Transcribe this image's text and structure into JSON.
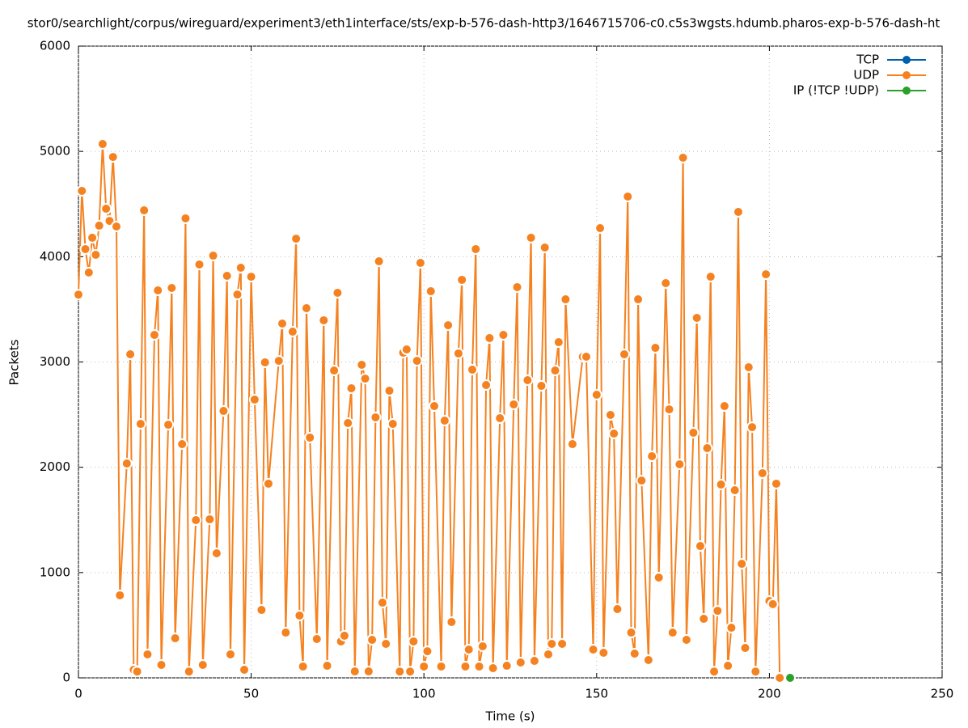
{
  "chart_data": {
    "type": "line",
    "title": "stor0/searchlight/corpus/wireguard/experiment3/eth1interface/sts/exp-b-576-dash-http3/1646715706-c0.c5s3wgsts.hdumb.pharos-exp-b-576-dash-ht",
    "x_label": "Time (s)",
    "y_label": "Packets",
    "xlim": [
      0,
      250
    ],
    "xticks": [
      0,
      50,
      100,
      150,
      200,
      250
    ],
    "ylim": [
      0,
      6000
    ],
    "yticks": [
      0,
      1000,
      2000,
      3000,
      4000,
      5000,
      6000
    ],
    "grid": true,
    "legend": "top-right",
    "series": [
      {
        "name": "TCP",
        "color": "#0060ad",
        "x": [],
        "values": []
      },
      {
        "name": "UDP",
        "color": "#f58220",
        "x": [
          0,
          1,
          2,
          3,
          4,
          5,
          6,
          7,
          8,
          9,
          10,
          11,
          12,
          14,
          15,
          16,
          17,
          18,
          19,
          20,
          22,
          23,
          24,
          26,
          27,
          28,
          30,
          31,
          32,
          34,
          35,
          36,
          38,
          39,
          40,
          42,
          43,
          44,
          46,
          47,
          48,
          50,
          51,
          53,
          54,
          55,
          58,
          59,
          60,
          62,
          63,
          64,
          65,
          66,
          67,
          69,
          71,
          72,
          74,
          75,
          76,
          77,
          78,
          79,
          80,
          82,
          83,
          84,
          85,
          86,
          87,
          88,
          89,
          90,
          91,
          93,
          94,
          95,
          96,
          97,
          98,
          99,
          100,
          101,
          102,
          103,
          105,
          106,
          107,
          108,
          110,
          111,
          112,
          113,
          114,
          115,
          116,
          117,
          118,
          119,
          120,
          122,
          123,
          124,
          126,
          127,
          128,
          130,
          131,
          132,
          134,
          135,
          136,
          137,
          138,
          139,
          140,
          141,
          143,
          146,
          147,
          149,
          150,
          151,
          152,
          154,
          155,
          156,
          158,
          159,
          160,
          161,
          162,
          163,
          165,
          166,
          167,
          168,
          170,
          171,
          172,
          174,
          175,
          176,
          178,
          179,
          180,
          181,
          182,
          183,
          184,
          185,
          186,
          187,
          188,
          189,
          190,
          191,
          192,
          193,
          194,
          195,
          196,
          198,
          199,
          200,
          201,
          202,
          203
        ],
        "values": [
          3640,
          4625,
          4072,
          3850,
          4180,
          4018,
          4295,
          5070,
          4456,
          4340,
          4947,
          4287,
          784,
          2036,
          3073,
          77,
          60,
          2412,
          4440,
          223,
          3257,
          3680,
          123,
          2404,
          3703,
          376,
          2220,
          4364,
          60,
          1498,
          3926,
          123,
          1506,
          4010,
          1183,
          2535,
          3818,
          223,
          3641,
          3895,
          77,
          3810,
          2643,
          645,
          2996,
          1844,
          3011,
          3365,
          430,
          3288,
          4171,
          592,
          108,
          3511,
          2282,
          369,
          3396,
          115,
          2919,
          3657,
          346,
          400,
          2420,
          2750,
          61,
          2973,
          2842,
          61,
          361,
          2474,
          3956,
          714,
          323,
          2727,
          2412,
          60,
          3088,
          3119,
          60,
          346,
          3011,
          3941,
          108,
          253,
          3672,
          2581,
          108,
          2443,
          3349,
          530,
          3081,
          3780,
          108,
          269,
          2927,
          4072,
          108,
          300,
          2781,
          3227,
          92,
          2466,
          3257,
          115,
          2597,
          3711,
          146,
          2827,
          4180,
          161,
          2773,
          4087,
          223,
          323,
          2919,
          3188,
          323,
          3595,
          2220,
          3050,
          3050,
          269,
          2689,
          4271,
          238,
          2497,
          2320,
          653,
          3073,
          4571,
          430,
          230,
          3595,
          1874,
          169,
          2105,
          3134,
          953,
          3749,
          2550,
          430,
          2028,
          4940,
          361,
          2328,
          3419,
          1252,
          561,
          2182,
          3810,
          60,
          637,
          1836,
          2581,
          115,
          476,
          1782,
          4425,
          1083,
          284,
          2950,
          2381,
          60,
          1944,
          3833,
          730,
          700,
          1844,
          0
        ]
      },
      {
        "name": "IP (!TCP  !UDP)",
        "color": "#2ca02c",
        "x": [
          206
        ],
        "values": [
          0
        ]
      }
    ]
  }
}
